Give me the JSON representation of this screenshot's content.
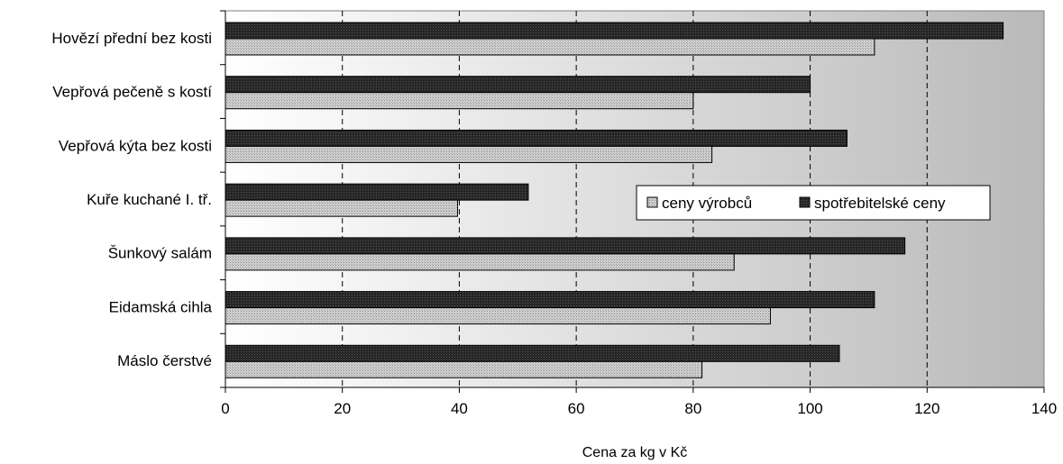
{
  "chart_data": {
    "type": "bar",
    "orientation": "horizontal",
    "categories": [
      "Hovězí přední bez kosti",
      "Vepřová pečeně s kostí",
      "Vepřová kýta bez kosti",
      "Kuře kuchané I. tř.",
      "Šunkový salám",
      "Eidamská cihla",
      "Máslo čerstvé"
    ],
    "series": [
      {
        "name": "spotřebitelské ceny",
        "values": [
          133,
          100,
          106.3,
          51.8,
          116.2,
          111,
          105
        ],
        "color": "#222222"
      },
      {
        "name": "ceny výrobců",
        "values": [
          111,
          80,
          83.2,
          39.7,
          87,
          93.2,
          81.5
        ],
        "color": "#c8c8c8"
      }
    ],
    "title": "",
    "xlabel": "Cena za kg v Kč",
    "ylabel": "",
    "xlim": [
      0,
      140
    ],
    "xticks": [
      0,
      20,
      40,
      60,
      80,
      100,
      120,
      140
    ],
    "grid": "vertical dashed",
    "legend": {
      "placement": "center-right",
      "entries": [
        "ceny výrobců",
        "spotřebitelské ceny"
      ]
    },
    "colors": {
      "plot_gradient_start": "#ffffff",
      "plot_gradient_end": "#b9b9b9"
    }
  }
}
